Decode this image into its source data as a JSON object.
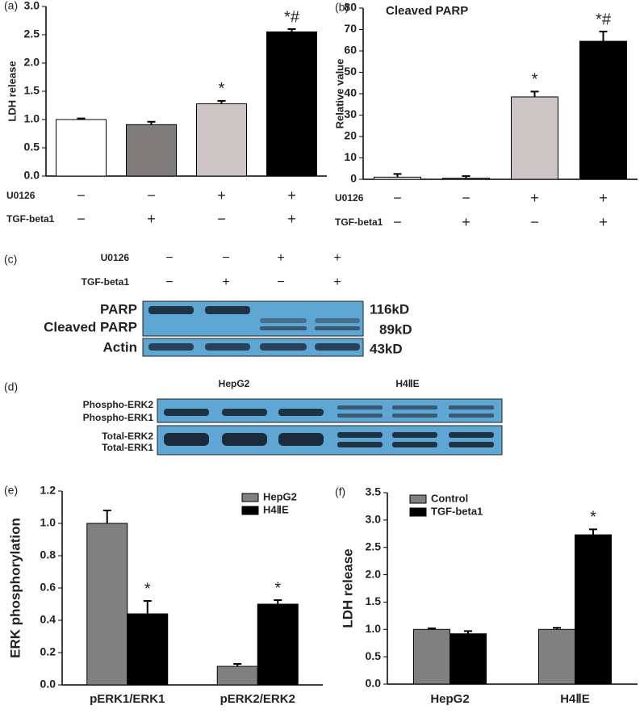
{
  "chart_data": [
    {
      "type": "bar",
      "panel": "(a)",
      "ylabel": "LDH release",
      "values": [
        1.0,
        0.91,
        1.28,
        2.55
      ],
      "errors": [
        0.02,
        0.05,
        0.05,
        0.05
      ],
      "colors": [
        "#ffffff",
        "#7f7b7b",
        "#cdc5c5",
        "#000000"
      ],
      "annotations": [
        null,
        null,
        "*",
        "*#"
      ],
      "rows": [
        {
          "label": "U0126",
          "signs": [
            "−",
            "−",
            "+",
            "+"
          ]
        },
        {
          "label": "TGF-beta1",
          "signs": [
            "−",
            "+",
            "−",
            "+"
          ]
        }
      ],
      "ylim": [
        0,
        3
      ],
      "yticks": [
        {
          "value": 0,
          "label": "0.0"
        },
        {
          "value": 0.5,
          "label": "0.5"
        },
        {
          "value": 1,
          "label": "1.0"
        },
        {
          "value": 1.5,
          "label": "1.5"
        },
        {
          "value": 2,
          "label": "2.0"
        },
        {
          "value": 2.5,
          "label": "2.5"
        },
        {
          "value": 3,
          "label": "3.0"
        }
      ]
    },
    {
      "type": "bar",
      "panel": "(b)",
      "title": "Cleaved PARP",
      "ylabel": "Relative value",
      "values": [
        1,
        0.5,
        38.5,
        64.5
      ],
      "errors": [
        1.5,
        1,
        2.5,
        4.5
      ],
      "colors": [
        "#ffffff",
        "#a8a4a4",
        "#cdc5c5",
        "#000000"
      ],
      "annotations": [
        null,
        null,
        "*",
        "*#"
      ],
      "rows": [
        {
          "label": "U0126",
          "signs": [
            "−",
            "−",
            "+",
            "+"
          ]
        },
        {
          "label": "TGF-beta1",
          "signs": [
            "−",
            "+",
            "−",
            "+"
          ]
        }
      ],
      "ylim": [
        0,
        80
      ],
      "yticks": [
        0,
        10,
        20,
        30,
        40,
        50,
        60,
        70,
        80
      ]
    },
    {
      "type": "bar",
      "panel": "(e)",
      "ylabel": "ERK phosphorylation",
      "categories": [
        "pERK1/ERK1",
        "pERK2/ERK2"
      ],
      "series": [
        {
          "name": "HepG2",
          "color": "#808080",
          "values": [
            1.0,
            0.115
          ],
          "errors": [
            0.08,
            0.015
          ],
          "annotations": [
            null,
            null
          ]
        },
        {
          "name": "H4ⅡE",
          "color": "#000000",
          "values": [
            0.44,
            0.5
          ],
          "errors": [
            0.08,
            0.025
          ],
          "annotations": [
            "*",
            "*"
          ]
        }
      ],
      "legend": "top-right",
      "ylim": [
        0,
        1.2
      ],
      "yticks": [
        {
          "value": 0,
          "label": "0.0"
        },
        {
          "value": 0.2,
          "label": "0.2"
        },
        {
          "value": 0.4,
          "label": "0.4"
        },
        {
          "value": 0.6,
          "label": "0.6"
        },
        {
          "value": 0.8,
          "label": "0.8"
        },
        {
          "value": 1,
          "label": "1.0"
        },
        {
          "value": 1.2,
          "label": "1.2"
        }
      ]
    },
    {
      "type": "bar",
      "panel": "(f)",
      "ylabel": "LDH release",
      "categories": [
        "HepG2",
        "H4ⅡE"
      ],
      "series": [
        {
          "name": "Control",
          "color": "#808080",
          "values": [
            1.0,
            1.0
          ],
          "errors": [
            0.02,
            0.03
          ],
          "annotations": [
            null,
            null
          ]
        },
        {
          "name": "TGF-beta1",
          "color": "#000000",
          "values": [
            0.92,
            2.73
          ],
          "errors": [
            0.05,
            0.1
          ],
          "annotations": [
            null,
            "*"
          ]
        }
      ],
      "legend": "top-left",
      "ylim": [
        0,
        3.5
      ],
      "yticks": [
        {
          "value": 0,
          "label": "0.0"
        },
        {
          "value": 0.5,
          "label": "0.5"
        },
        {
          "value": 1,
          "label": "1.0"
        },
        {
          "value": 1.5,
          "label": "1.5"
        },
        {
          "value": 2,
          "label": "2.0"
        },
        {
          "value": 2.5,
          "label": "2.5"
        },
        {
          "value": 3,
          "label": "3.0"
        },
        {
          "value": 3.5,
          "label": "3.5"
        }
      ]
    }
  ],
  "panel_c": {
    "label": "(c)",
    "rows": [
      {
        "label": "U0126",
        "signs": [
          "−",
          "−",
          "+",
          "+"
        ]
      },
      {
        "label": "TGF-beta1",
        "signs": [
          "−",
          "+",
          "−",
          "+"
        ]
      }
    ],
    "bands": [
      "PARP",
      "Cleaved PARP",
      "Actin"
    ],
    "sizes": [
      "116kD",
      "89kD",
      "43kD"
    ]
  },
  "panel_d": {
    "label": "(d)",
    "groups": [
      "HepG2",
      "H4ⅡE"
    ],
    "bands": [
      "Phospho-ERK2",
      "Phospho-ERK1",
      "Total-ERK2",
      "Total-ERK1"
    ]
  }
}
